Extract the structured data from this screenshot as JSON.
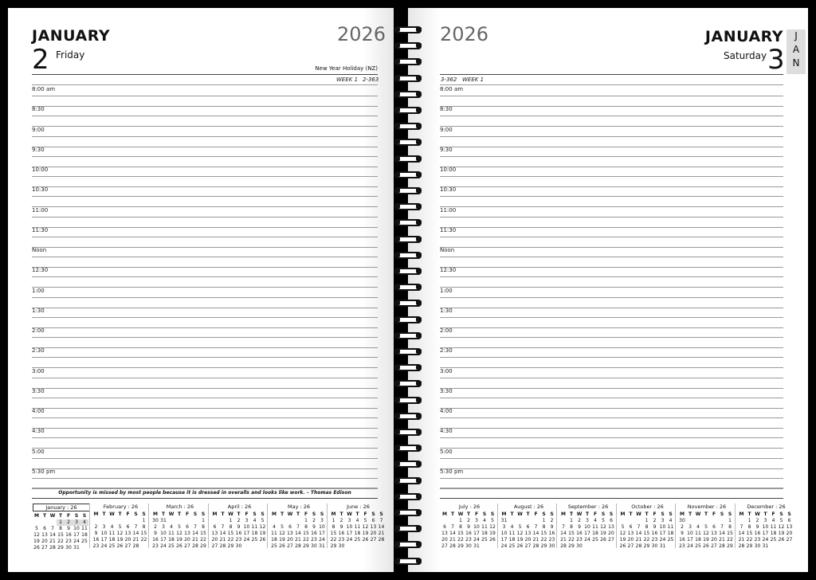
{
  "left": {
    "month": "JANUARY",
    "day": "2",
    "weekday": "Friday",
    "year": "2026",
    "holiday": "New Year Holiday (NZ)",
    "week": "WEEK 1",
    "daycount": "2-363",
    "quote": "Opportunity is missed by most people because it is dressed in overalls and looks like work. – Thomas Edison"
  },
  "right": {
    "month": "JANUARY",
    "day": "3",
    "weekday": "Saturday",
    "year": "2026",
    "week": "WEEK 1",
    "daycount": "3-362",
    "tab": [
      "J",
      "A",
      "N"
    ]
  },
  "times": [
    "8:00 am",
    "8:30",
    "9:00",
    "9:30",
    "10:00",
    "10:30",
    "11:00",
    "11:30",
    "Noon",
    "12:30",
    "1:00",
    "1:30",
    "2:00",
    "2:30",
    "3:00",
    "3:30",
    "4:00",
    "4:30",
    "5:00",
    "5:30 pm"
  ],
  "weekday_headers": [
    "M",
    "T",
    "W",
    "T",
    "F",
    "S",
    "S"
  ],
  "calendars_left": [
    {
      "title": "January : 26",
      "current": true,
      "highlight": [
        "1",
        "2",
        "3",
        "4"
      ],
      "weeks": [
        [
          "",
          "",
          "",
          "1",
          "2",
          "3",
          "4"
        ],
        [
          "5",
          "6",
          "7",
          "8",
          "9",
          "10",
          "11"
        ],
        [
          "12",
          "13",
          "14",
          "15",
          "16",
          "17",
          "18"
        ],
        [
          "19",
          "20",
          "21",
          "22",
          "23",
          "24",
          "25"
        ],
        [
          "26",
          "27",
          "28",
          "29",
          "30",
          "31",
          ""
        ]
      ]
    },
    {
      "title": "February : 26",
      "weeks": [
        [
          "",
          "",
          "",
          "",
          "",
          "",
          "1"
        ],
        [
          "2",
          "3",
          "4",
          "5",
          "6",
          "7",
          "8"
        ],
        [
          "9",
          "10",
          "11",
          "12",
          "13",
          "14",
          "15"
        ],
        [
          "16",
          "17",
          "18",
          "19",
          "20",
          "21",
          "22"
        ],
        [
          "23",
          "24",
          "25",
          "26",
          "27",
          "28",
          ""
        ]
      ]
    },
    {
      "title": "March : 26",
      "weeks": [
        [
          "30",
          "31",
          "",
          "",
          "",
          "",
          "1"
        ],
        [
          "2",
          "3",
          "4",
          "5",
          "6",
          "7",
          "8"
        ],
        [
          "9",
          "10",
          "11",
          "12",
          "13",
          "14",
          "15"
        ],
        [
          "16",
          "17",
          "18",
          "19",
          "20",
          "21",
          "22"
        ],
        [
          "23",
          "24",
          "25",
          "26",
          "27",
          "28",
          "29"
        ]
      ]
    },
    {
      "title": "April : 26",
      "weeks": [
        [
          "",
          "",
          "1",
          "2",
          "3",
          "4",
          "5"
        ],
        [
          "6",
          "7",
          "8",
          "9",
          "10",
          "11",
          "12"
        ],
        [
          "13",
          "14",
          "15",
          "16",
          "17",
          "18",
          "19"
        ],
        [
          "20",
          "21",
          "22",
          "23",
          "24",
          "25",
          "26"
        ],
        [
          "27",
          "28",
          "29",
          "30",
          "",
          "",
          ""
        ]
      ]
    },
    {
      "title": "May : 26",
      "weeks": [
        [
          "",
          "",
          "",
          "",
          "1",
          "2",
          "3"
        ],
        [
          "4",
          "5",
          "6",
          "7",
          "8",
          "9",
          "10"
        ],
        [
          "11",
          "12",
          "13",
          "14",
          "15",
          "16",
          "17"
        ],
        [
          "18",
          "19",
          "20",
          "21",
          "22",
          "23",
          "24"
        ],
        [
          "25",
          "26",
          "27",
          "28",
          "29",
          "30",
          "31"
        ]
      ]
    },
    {
      "title": "June : 26",
      "weeks": [
        [
          "1",
          "2",
          "3",
          "4",
          "5",
          "6",
          "7"
        ],
        [
          "8",
          "9",
          "10",
          "11",
          "12",
          "13",
          "14"
        ],
        [
          "15",
          "16",
          "17",
          "18",
          "19",
          "20",
          "21"
        ],
        [
          "22",
          "23",
          "24",
          "25",
          "26",
          "27",
          "28"
        ],
        [
          "29",
          "30",
          "",
          "",
          "",
          "",
          ""
        ]
      ]
    }
  ],
  "calendars_right": [
    {
      "title": "July : 26",
      "weeks": [
        [
          "",
          "",
          "1",
          "2",
          "3",
          "4",
          "5"
        ],
        [
          "6",
          "7",
          "8",
          "9",
          "10",
          "11",
          "12"
        ],
        [
          "13",
          "14",
          "15",
          "16",
          "17",
          "18",
          "19"
        ],
        [
          "20",
          "21",
          "22",
          "23",
          "24",
          "25",
          "26"
        ],
        [
          "27",
          "28",
          "29",
          "30",
          "31",
          "",
          ""
        ]
      ]
    },
    {
      "title": "August : 26",
      "weeks": [
        [
          "31",
          "",
          "",
          "",
          "",
          "1",
          "2"
        ],
        [
          "3",
          "4",
          "5",
          "6",
          "7",
          "8",
          "9"
        ],
        [
          "10",
          "11",
          "12",
          "13",
          "14",
          "15",
          "16"
        ],
        [
          "17",
          "18",
          "19",
          "20",
          "21",
          "22",
          "23"
        ],
        [
          "24",
          "25",
          "26",
          "27",
          "28",
          "29",
          "30"
        ]
      ]
    },
    {
      "title": "September : 26",
      "weeks": [
        [
          "",
          "1",
          "2",
          "3",
          "4",
          "5",
          "6"
        ],
        [
          "7",
          "8",
          "9",
          "10",
          "11",
          "12",
          "13"
        ],
        [
          "14",
          "15",
          "16",
          "17",
          "18",
          "19",
          "20"
        ],
        [
          "21",
          "22",
          "23",
          "24",
          "25",
          "26",
          "27"
        ],
        [
          "28",
          "29",
          "30",
          "",
          "",
          "",
          ""
        ]
      ]
    },
    {
      "title": "October : 26",
      "weeks": [
        [
          "",
          "",
          "",
          "1",
          "2",
          "3",
          "4"
        ],
        [
          "5",
          "6",
          "7",
          "8",
          "9",
          "10",
          "11"
        ],
        [
          "12",
          "13",
          "14",
          "15",
          "16",
          "17",
          "18"
        ],
        [
          "19",
          "20",
          "21",
          "22",
          "23",
          "24",
          "25"
        ],
        [
          "26",
          "27",
          "28",
          "29",
          "30",
          "31",
          ""
        ]
      ]
    },
    {
      "title": "November : 26",
      "weeks": [
        [
          "30",
          "",
          "",
          "",
          "",
          "",
          "1"
        ],
        [
          "2",
          "3",
          "4",
          "5",
          "6",
          "7",
          "8"
        ],
        [
          "9",
          "10",
          "11",
          "12",
          "13",
          "14",
          "15"
        ],
        [
          "16",
          "17",
          "18",
          "19",
          "20",
          "21",
          "22"
        ],
        [
          "23",
          "24",
          "25",
          "26",
          "27",
          "28",
          "29"
        ]
      ]
    },
    {
      "title": "December : 26",
      "weeks": [
        [
          "",
          "1",
          "2",
          "3",
          "4",
          "5",
          "6"
        ],
        [
          "7",
          "8",
          "9",
          "10",
          "11",
          "12",
          "13"
        ],
        [
          "14",
          "15",
          "16",
          "17",
          "18",
          "19",
          "20"
        ],
        [
          "21",
          "22",
          "23",
          "24",
          "25",
          "26",
          "27"
        ],
        [
          "28",
          "29",
          "30",
          "31",
          "",
          "",
          ""
        ]
      ]
    }
  ]
}
